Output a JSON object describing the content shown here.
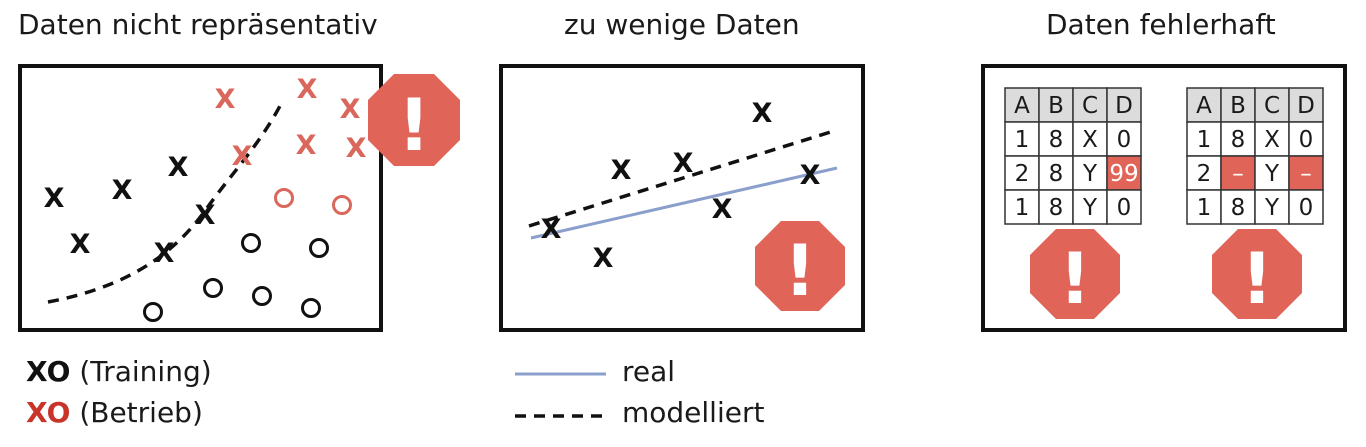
{
  "panels": [
    {
      "title": "Daten nicht repräsentativ"
    },
    {
      "title": "zu wenige Daten"
    },
    {
      "title": "Daten fehlerhaft"
    }
  ],
  "markers": {
    "x": "X",
    "o": "O"
  },
  "warning": {
    "symbol": "!",
    "color": "#e06458"
  },
  "colors": {
    "training": "#111111",
    "operation": "#d9675c",
    "real": "#8a9fcc",
    "border": "#111111"
  },
  "legend_left": [
    {
      "marks": "XO",
      "label": "(Training)",
      "color": "#111111"
    },
    {
      "marks": "XO",
      "label": "(Betrieb)",
      "color": "#c8332a"
    }
  ],
  "legend_middle": [
    {
      "label": "real",
      "style": "solid"
    },
    {
      "label": "modelliert",
      "style": "dashed"
    }
  ],
  "tables": [
    {
      "headers": [
        "A",
        "B",
        "C",
        "D"
      ],
      "rows": [
        [
          "1",
          "8",
          "X",
          "0"
        ],
        [
          "2",
          "8",
          "Y",
          "99"
        ],
        [
          "1",
          "8",
          "Y",
          "0"
        ]
      ]
    },
    {
      "headers": [
        "A",
        "B",
        "C",
        "D"
      ],
      "rows": [
        [
          "1",
          "8",
          "X",
          "0"
        ],
        [
          "2",
          "–",
          "Y",
          "–"
        ],
        [
          "1",
          "8",
          "Y",
          "0"
        ]
      ]
    }
  ]
}
